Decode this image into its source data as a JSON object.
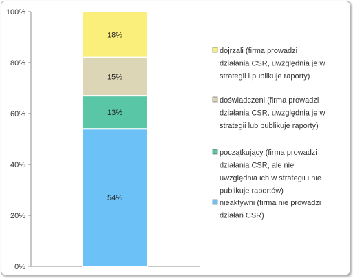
{
  "chart_data": {
    "type": "bar",
    "stacked": true,
    "percent_stacked": true,
    "categories": [
      ""
    ],
    "ylim": [
      0,
      100
    ],
    "y_ticks": [
      "0%",
      "20%",
      "40%",
      "60%",
      "80%",
      "100%"
    ],
    "y_tick_values": [
      0,
      20,
      40,
      60,
      80,
      100
    ],
    "grid": false,
    "legend_position": "right",
    "series": [
      {
        "name": "nieaktywni (firma nie prowadzi działań CSR)",
        "values": [
          54
        ],
        "label": "54%",
        "color": "#6cc2f7",
        "legend_lines": [
          "nieaktywni (firma nie prowadzi",
          "działań CSR)"
        ]
      },
      {
        "name": "początkujący (firma prowadzi działania CSR, ale nie uwzględnia ich w strategii i nie publikuje raportów)",
        "values": [
          13
        ],
        "label": "13%",
        "color": "#59c6a5",
        "legend_lines": [
          "początkujący (firma prowadzi",
          "działania CSR, ale nie",
          "uwzględnia ich w strategii i nie",
          "publikuje raportów)"
        ]
      },
      {
        "name": "doświadczeni (firma prowadzi działania CSR, uwzględnia je w strategii lub publikuje raporty)",
        "values": [
          15
        ],
        "label": "15%",
        "color": "#ddd6b6",
        "legend_lines": [
          "doświadczeni (firma prowadzi",
          "działania CSR, uwzględnia je w",
          "strategii lub publikuje raporty)"
        ]
      },
      {
        "name": "dojrzali (firma prowadzi działania CSR, uwzględnia je w strategii i publikuje raporty)",
        "values": [
          18
        ],
        "label": "18%",
        "color": "#fbef7b",
        "legend_lines": [
          "dojrzali (firma prowadzi",
          "działania CSR, uwzględnia je w",
          "strategii i publikuje raporty)"
        ]
      }
    ]
  }
}
